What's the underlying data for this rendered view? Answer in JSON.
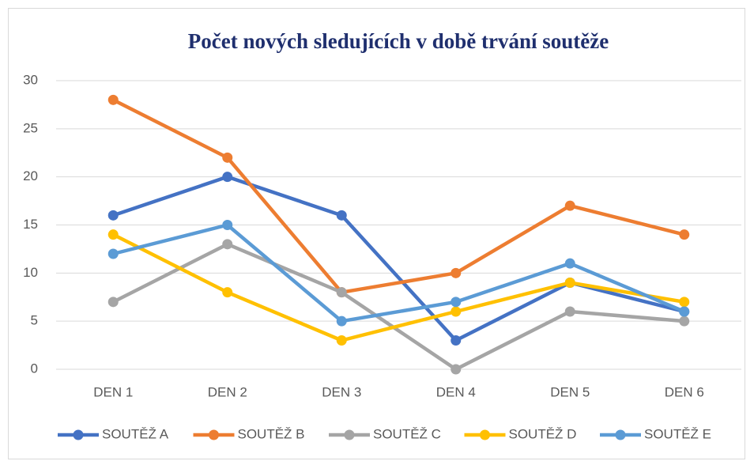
{
  "chart_data": {
    "type": "line",
    "title": "Počet nových sledujících v době trvání soutěže",
    "categories": [
      "DEN 1",
      "DEN 2",
      "DEN 3",
      "DEN 4",
      "DEN 5",
      "DEN 6"
    ],
    "series": [
      {
        "name": "SOUTĚŽ A",
        "color": "#4472c4",
        "values": [
          16,
          20,
          16,
          3,
          9,
          6
        ]
      },
      {
        "name": "SOUTĚŽ B",
        "color": "#ed7d31",
        "values": [
          28,
          22,
          8,
          10,
          17,
          14
        ]
      },
      {
        "name": "SOUTĚŽ C",
        "color": "#a5a5a5",
        "values": [
          7,
          13,
          8,
          0,
          6,
          5
        ]
      },
      {
        "name": "SOUTĚŽ D",
        "color": "#ffc000",
        "values": [
          14,
          8,
          3,
          6,
          9,
          7
        ]
      },
      {
        "name": "SOUTĚŽ E",
        "color": "#5b9bd5",
        "values": [
          12,
          15,
          5,
          7,
          11,
          6
        ]
      }
    ],
    "ylim": [
      0,
      30
    ],
    "yticks": [
      0,
      5,
      10,
      15,
      20,
      25,
      30
    ],
    "grid": true,
    "legend": "bottom"
  }
}
